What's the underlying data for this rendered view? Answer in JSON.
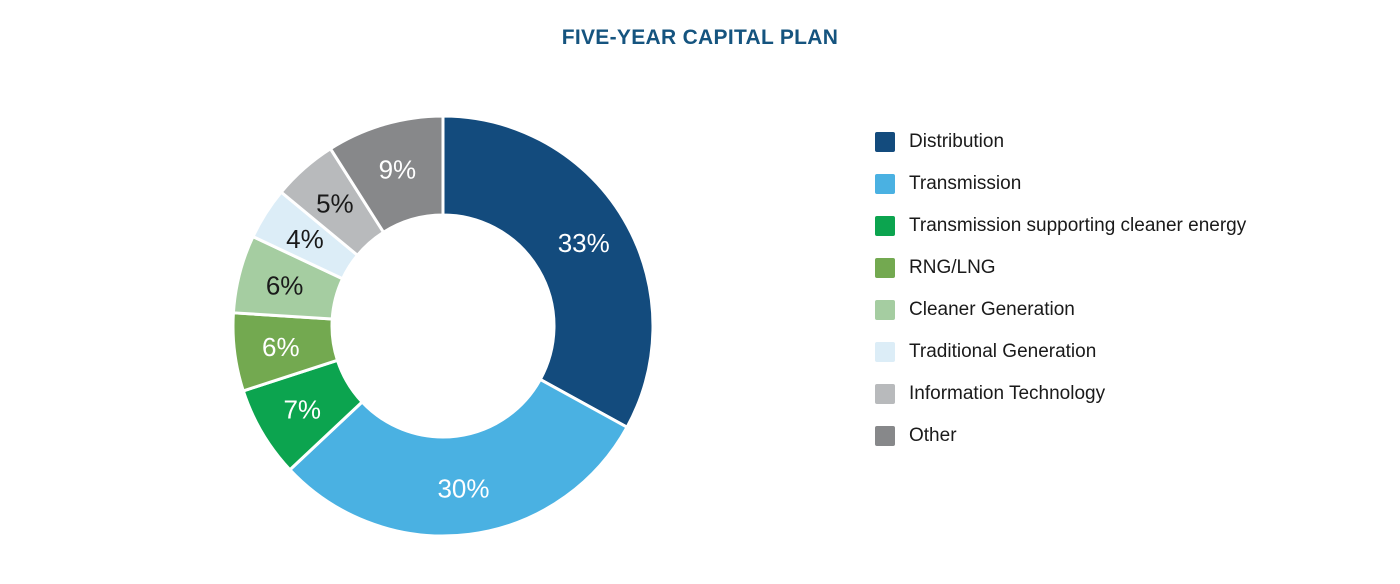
{
  "header": {
    "title": "FIVE-YEAR CAPITAL PLAN",
    "title_color": "#15547f"
  },
  "chart_data": {
    "type": "pie",
    "subtype": "donut",
    "title": "FIVE-YEAR CAPITAL PLAN",
    "start_angle_deg": 0,
    "direction": "clockwise",
    "inner_radius_ratio": 0.53,
    "legend_position": "right",
    "slice_separator_color": "#ffffff",
    "slices": [
      {
        "label": "Distribution",
        "value": 33,
        "display": "33%",
        "color": "#134b7d",
        "label_color": "#ffffff"
      },
      {
        "label": "Transmission",
        "value": 30,
        "display": "30%",
        "color": "#4ab1e2",
        "label_color": "#ffffff"
      },
      {
        "label": "Transmission supporting cleaner energy",
        "value": 7,
        "display": "7%",
        "color": "#0ca44f",
        "label_color": "#ffffff"
      },
      {
        "label": "RNG/LNG",
        "value": 6,
        "display": "6%",
        "color": "#73a950",
        "label_color": "#ffffff"
      },
      {
        "label": "Cleaner Generation",
        "value": 6,
        "display": "6%",
        "color": "#a5cda1",
        "label_color": "#1a1a1a"
      },
      {
        "label": "Traditional Generation",
        "value": 4,
        "display": "4%",
        "color": "#dcedf7",
        "label_color": "#1a1a1a"
      },
      {
        "label": "Information Technology",
        "value": 5,
        "display": "5%",
        "color": "#b8babc",
        "label_color": "#1a1a1a"
      },
      {
        "label": "Other",
        "value": 9,
        "display": "9%",
        "color": "#87888a",
        "label_color": "#ffffff"
      }
    ],
    "legend_text_color": "#1a1a1a"
  }
}
